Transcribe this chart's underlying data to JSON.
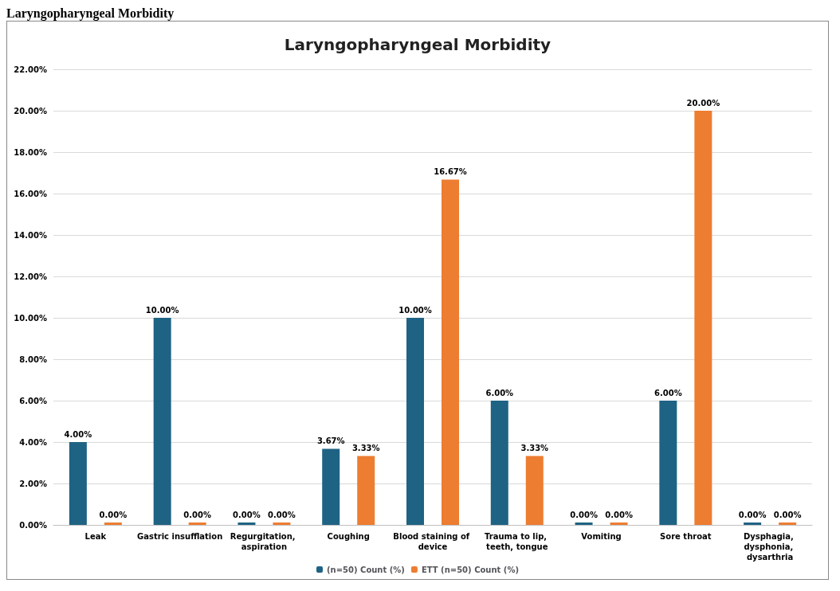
{
  "chart_data": {
    "type": "bar",
    "title": "Laryngopharyngeal Morbidity",
    "annotations": [
      "Laryngopharyngeal Morbidity"
    ],
    "categories": [
      "Leak",
      "Gastric insufflation",
      "Regurgitation, aspiration",
      "Coughing",
      "Blood staining of device",
      "Trauma to lip, teeth, tongue",
      "Vomiting",
      "Sore throat",
      "Dysphagia, dysphonia, dysarthria"
    ],
    "series": [
      {
        "name": "(n=50) Count (%)",
        "color": "#1f6384",
        "values": [
          4,
          10,
          0,
          3.67,
          10,
          6,
          0,
          6,
          0
        ],
        "value_labels": [
          "4.00%",
          "10.00%",
          "0.00%",
          "3.67%",
          "10.00%",
          "6.00%",
          "0.00%",
          "6.00%",
          "0.00%"
        ]
      },
      {
        "name": "ETT (n=50) Count (%)",
        "color": "#ed7d31",
        "values": [
          0,
          0,
          0,
          3.33,
          16.67,
          3.33,
          0,
          20,
          0
        ],
        "value_labels": [
          "0.00%",
          "0.00%",
          "0.00%",
          "3.33%",
          "16.67%",
          "3.33%",
          "0.00%",
          "20.00%",
          "0.00%"
        ]
      }
    ],
    "ylim": [
      0,
      22
    ],
    "yticks": [
      {
        "value": 0,
        "label": "0.00%"
      },
      {
        "value": 2,
        "label": "2.00%"
      },
      {
        "value": 4,
        "label": "4.00%"
      },
      {
        "value": 6,
        "label": "6.00%"
      },
      {
        "value": 8,
        "label": "8.00%"
      },
      {
        "value": 10,
        "label": "10.00%"
      },
      {
        "value": 12,
        "label": "12.00%"
      },
      {
        "value": 14,
        "label": "14.00%"
      },
      {
        "value": 16,
        "label": "16.00%"
      },
      {
        "value": 18,
        "label": "18.00%"
      },
      {
        "value": 20,
        "label": "20.00%"
      },
      {
        "value": 22,
        "label": "22.00%"
      }
    ],
    "grid": "y",
    "legend": "bottom"
  }
}
